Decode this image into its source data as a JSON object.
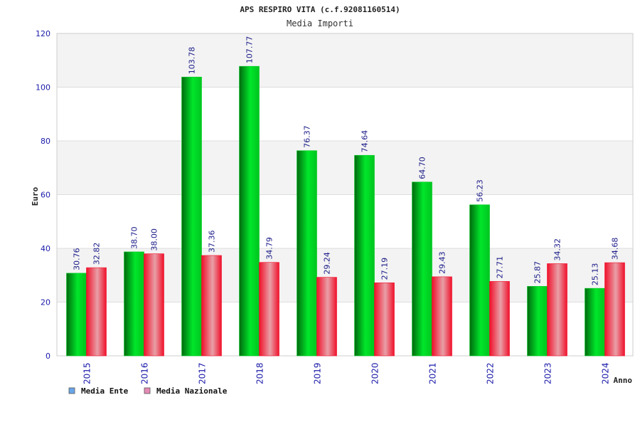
{
  "chart_data": {
    "type": "bar",
    "title": "APS RESPIRO VITA (c.f.92081160514)",
    "subtitle": "Media Importi",
    "xlabel": "Anno",
    "ylabel": "Euro",
    "ylim": [
      0,
      120
    ],
    "yticks": [
      0,
      20,
      40,
      60,
      80,
      100,
      120
    ],
    "grid": true,
    "legend_position": "bottom-left",
    "categories": [
      "2015",
      "2016",
      "2017",
      "2018",
      "2019",
      "2020",
      "2021",
      "2022",
      "2023",
      "2024"
    ],
    "series": [
      {
        "name": "Media Ente",
        "color": "#00cc22",
        "legend_color": "#6aa6e8",
        "values": [
          30.76,
          38.7,
          103.78,
          107.77,
          76.37,
          74.64,
          64.7,
          56.23,
          25.87,
          25.13
        ],
        "labels": [
          "30.76",
          "38.70",
          "103.78",
          "107.77",
          "76.37",
          "74.64",
          "64.70",
          "56.23",
          "25.87",
          "25.13"
        ]
      },
      {
        "name": "Media Nazionale",
        "color": "#f0102a",
        "legend_color": "#e58ab5",
        "values": [
          32.82,
          38.0,
          37.36,
          34.79,
          29.24,
          27.19,
          29.43,
          27.71,
          34.32,
          34.68
        ],
        "labels": [
          "32.82",
          "38.00",
          "37.36",
          "34.79",
          "29.24",
          "27.19",
          "29.43",
          "27.71",
          "34.32",
          "34.68"
        ]
      }
    ]
  }
}
